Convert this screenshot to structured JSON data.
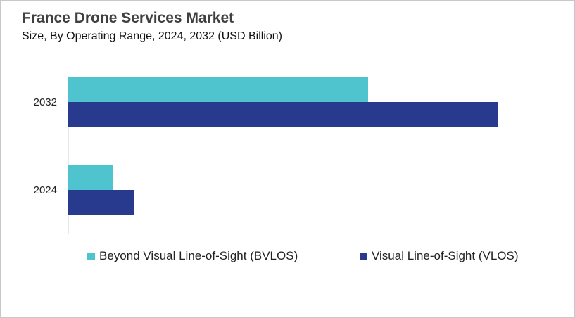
{
  "chart_data": {
    "type": "bar",
    "orientation": "horizontal",
    "title": "France Drone Services Market",
    "subtitle": "Size, By Operating Range, 2024, 2032 (USD Billion)",
    "categories": [
      "2032",
      "2024"
    ],
    "series": [
      {
        "name": "Beyond Visual Line-of-Sight (BVLOS)",
        "color": "#4fc4cf",
        "values": [
          4.26,
          0.63
        ]
      },
      {
        "name": "Visual Line-of-Sight (VLOS)",
        "color": "#283a8e",
        "values": [
          6.1,
          0.93
        ]
      }
    ],
    "xlim": [
      0,
      7.13
    ],
    "grid": false,
    "legend_position": "bottom",
    "value_axis_labels_shown": false
  }
}
